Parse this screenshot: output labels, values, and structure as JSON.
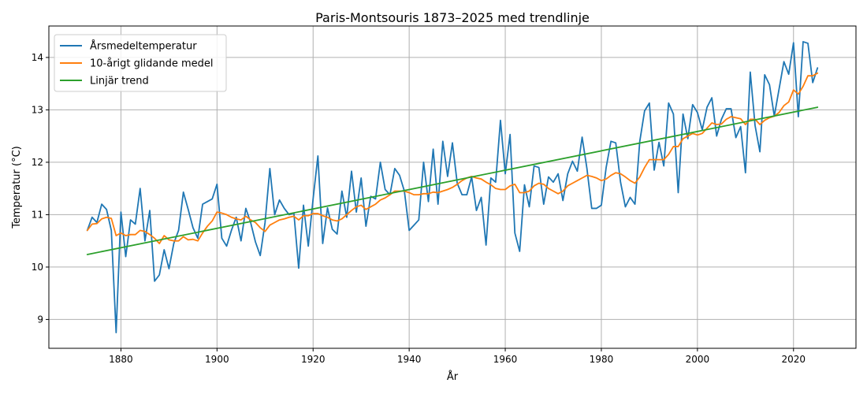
{
  "chart_data": {
    "type": "line",
    "title": "Paris-Montsouris 1873–2025 med trendlinje",
    "xlabel": "År",
    "ylabel": "Temperatur (°C)",
    "xlim": [
      1865,
      2033
    ],
    "ylim": [
      8.45,
      14.6
    ],
    "x_ticks": [
      1880,
      1900,
      1920,
      1940,
      1960,
      1980,
      2000,
      2020
    ],
    "y_ticks": [
      9,
      10,
      11,
      12,
      13,
      14
    ],
    "grid": true,
    "legend_position": "top-left",
    "series": [
      {
        "name": "Årsmedeltemperatur",
        "color": "#1f77b4",
        "points": [
          [
            1873,
            10.7
          ],
          [
            1874,
            10.95
          ],
          [
            1875,
            10.85
          ],
          [
            1876,
            11.2
          ],
          [
            1877,
            11.1
          ],
          [
            1878,
            10.7
          ],
          [
            1879,
            8.75
          ],
          [
            1880,
            11.05
          ],
          [
            1881,
            10.2
          ],
          [
            1882,
            10.9
          ],
          [
            1883,
            10.82
          ],
          [
            1884,
            11.5
          ],
          [
            1885,
            10.5
          ],
          [
            1886,
            11.08
          ],
          [
            1887,
            9.73
          ],
          [
            1888,
            9.85
          ],
          [
            1889,
            10.33
          ],
          [
            1890,
            9.97
          ],
          [
            1891,
            10.45
          ],
          [
            1892,
            10.7
          ],
          [
            1893,
            11.43
          ],
          [
            1894,
            11.1
          ],
          [
            1895,
            10.75
          ],
          [
            1896,
            10.55
          ],
          [
            1897,
            11.2
          ],
          [
            1898,
            11.25
          ],
          [
            1899,
            11.3
          ],
          [
            1900,
            11.58
          ],
          [
            1901,
            10.55
          ],
          [
            1902,
            10.4
          ],
          [
            1903,
            10.7
          ],
          [
            1904,
            10.95
          ],
          [
            1905,
            10.5
          ],
          [
            1906,
            11.12
          ],
          [
            1907,
            10.85
          ],
          [
            1908,
            10.48
          ],
          [
            1909,
            10.22
          ],
          [
            1910,
            10.85
          ],
          [
            1911,
            11.88
          ],
          [
            1912,
            11.0
          ],
          [
            1913,
            11.28
          ],
          [
            1914,
            11.12
          ],
          [
            1915,
            11.0
          ],
          [
            1916,
            11.03
          ],
          [
            1917,
            9.98
          ],
          [
            1918,
            11.18
          ],
          [
            1919,
            10.4
          ],
          [
            1920,
            11.3
          ],
          [
            1921,
            12.12
          ],
          [
            1922,
            10.45
          ],
          [
            1923,
            11.13
          ],
          [
            1924,
            10.72
          ],
          [
            1925,
            10.63
          ],
          [
            1926,
            11.45
          ],
          [
            1927,
            10.95
          ],
          [
            1928,
            11.83
          ],
          [
            1929,
            11.05
          ],
          [
            1930,
            11.7
          ],
          [
            1931,
            10.78
          ],
          [
            1932,
            11.35
          ],
          [
            1933,
            11.3
          ],
          [
            1934,
            12.0
          ],
          [
            1935,
            11.48
          ],
          [
            1936,
            11.38
          ],
          [
            1937,
            11.88
          ],
          [
            1938,
            11.75
          ],
          [
            1939,
            11.45
          ],
          [
            1940,
            10.7
          ],
          [
            1941,
            10.8
          ],
          [
            1942,
            10.9
          ],
          [
            1943,
            12.0
          ],
          [
            1944,
            11.25
          ],
          [
            1945,
            12.25
          ],
          [
            1946,
            11.2
          ],
          [
            1947,
            12.4
          ],
          [
            1948,
            11.73
          ],
          [
            1949,
            12.37
          ],
          [
            1950,
            11.6
          ],
          [
            1951,
            11.38
          ],
          [
            1952,
            11.38
          ],
          [
            1953,
            11.72
          ],
          [
            1954,
            11.08
          ],
          [
            1955,
            11.33
          ],
          [
            1956,
            10.42
          ],
          [
            1957,
            11.7
          ],
          [
            1958,
            11.62
          ],
          [
            1959,
            12.8
          ],
          [
            1960,
            11.78
          ],
          [
            1961,
            12.53
          ],
          [
            1962,
            10.65
          ],
          [
            1963,
            10.3
          ],
          [
            1964,
            11.57
          ],
          [
            1965,
            11.15
          ],
          [
            1966,
            11.93
          ],
          [
            1967,
            11.9
          ],
          [
            1968,
            11.2
          ],
          [
            1969,
            11.72
          ],
          [
            1970,
            11.62
          ],
          [
            1971,
            11.78
          ],
          [
            1972,
            11.27
          ],
          [
            1973,
            11.78
          ],
          [
            1974,
            12.02
          ],
          [
            1975,
            11.83
          ],
          [
            1976,
            12.48
          ],
          [
            1977,
            11.88
          ],
          [
            1978,
            11.12
          ],
          [
            1979,
            11.12
          ],
          [
            1980,
            11.18
          ],
          [
            1981,
            11.9
          ],
          [
            1982,
            12.4
          ],
          [
            1983,
            12.37
          ],
          [
            1984,
            11.62
          ],
          [
            1985,
            11.15
          ],
          [
            1986,
            11.33
          ],
          [
            1987,
            11.2
          ],
          [
            1988,
            12.4
          ],
          [
            1989,
            12.98
          ],
          [
            1990,
            13.13
          ],
          [
            1991,
            11.85
          ],
          [
            1992,
            12.38
          ],
          [
            1993,
            11.93
          ],
          [
            1994,
            13.13
          ],
          [
            1995,
            12.92
          ],
          [
            1996,
            11.42
          ],
          [
            1997,
            12.92
          ],
          [
            1998,
            12.45
          ],
          [
            1999,
            13.1
          ],
          [
            2000,
            12.95
          ],
          [
            2001,
            12.62
          ],
          [
            2002,
            13.05
          ],
          [
            2003,
            13.23
          ],
          [
            2004,
            12.5
          ],
          [
            2005,
            12.82
          ],
          [
            2006,
            13.02
          ],
          [
            2007,
            13.02
          ],
          [
            2008,
            12.47
          ],
          [
            2009,
            12.68
          ],
          [
            2010,
            11.8
          ],
          [
            2011,
            13.72
          ],
          [
            2012,
            12.7
          ],
          [
            2013,
            12.2
          ],
          [
            2014,
            13.67
          ],
          [
            2015,
            13.48
          ],
          [
            2016,
            12.88
          ],
          [
            2017,
            13.4
          ],
          [
            2018,
            13.92
          ],
          [
            2019,
            13.68
          ],
          [
            2020,
            14.28
          ],
          [
            2021,
            12.87
          ],
          [
            2022,
            14.3
          ],
          [
            2023,
            14.27
          ],
          [
            2024,
            13.52
          ],
          [
            2025,
            13.8
          ]
        ]
      },
      {
        "name": "10-årigt glidande medel",
        "color": "#ff7f0e",
        "points": [
          [
            1873,
            10.7
          ],
          [
            1874,
            10.82
          ],
          [
            1875,
            10.83
          ],
          [
            1876,
            10.92
          ],
          [
            1877,
            10.95
          ],
          [
            1878,
            10.93
          ],
          [
            1879,
            10.6
          ],
          [
            1880,
            10.65
          ],
          [
            1881,
            10.6
          ],
          [
            1882,
            10.62
          ],
          [
            1883,
            10.62
          ],
          [
            1884,
            10.7
          ],
          [
            1885,
            10.68
          ],
          [
            1886,
            10.62
          ],
          [
            1887,
            10.55
          ],
          [
            1888,
            10.45
          ],
          [
            1889,
            10.6
          ],
          [
            1890,
            10.52
          ],
          [
            1891,
            10.5
          ],
          [
            1892,
            10.5
          ],
          [
            1893,
            10.58
          ],
          [
            1894,
            10.52
          ],
          [
            1895,
            10.53
          ],
          [
            1896,
            10.5
          ],
          [
            1897,
            10.65
          ],
          [
            1898,
            10.78
          ],
          [
            1899,
            10.88
          ],
          [
            1900,
            11.05
          ],
          [
            1901,
            11.03
          ],
          [
            1902,
            11.0
          ],
          [
            1903,
            10.95
          ],
          [
            1904,
            10.92
          ],
          [
            1905,
            10.9
          ],
          [
            1906,
            10.97
          ],
          [
            1907,
            10.9
          ],
          [
            1908,
            10.85
          ],
          [
            1909,
            10.75
          ],
          [
            1910,
            10.68
          ],
          [
            1911,
            10.8
          ],
          [
            1912,
            10.85
          ],
          [
            1913,
            10.9
          ],
          [
            1914,
            10.92
          ],
          [
            1915,
            10.95
          ],
          [
            1916,
            10.97
          ],
          [
            1917,
            10.9
          ],
          [
            1918,
            10.98
          ],
          [
            1919,
            10.98
          ],
          [
            1920,
            11.02
          ],
          [
            1921,
            11.02
          ],
          [
            1922,
            10.98
          ],
          [
            1923,
            10.95
          ],
          [
            1924,
            10.9
          ],
          [
            1925,
            10.88
          ],
          [
            1926,
            10.92
          ],
          [
            1927,
            11.0
          ],
          [
            1928,
            11.08
          ],
          [
            1929,
            11.15
          ],
          [
            1930,
            11.18
          ],
          [
            1931,
            11.1
          ],
          [
            1932,
            11.15
          ],
          [
            1933,
            11.2
          ],
          [
            1934,
            11.28
          ],
          [
            1935,
            11.32
          ],
          [
            1936,
            11.38
          ],
          [
            1937,
            11.45
          ],
          [
            1938,
            11.45
          ],
          [
            1939,
            11.45
          ],
          [
            1940,
            11.42
          ],
          [
            1941,
            11.38
          ],
          [
            1942,
            11.38
          ],
          [
            1943,
            11.4
          ],
          [
            1944,
            11.4
          ],
          [
            1945,
            11.43
          ],
          [
            1946,
            11.42
          ],
          [
            1947,
            11.45
          ],
          [
            1948,
            11.48
          ],
          [
            1949,
            11.52
          ],
          [
            1950,
            11.58
          ],
          [
            1951,
            11.65
          ],
          [
            1952,
            11.7
          ],
          [
            1953,
            11.73
          ],
          [
            1954,
            11.7
          ],
          [
            1955,
            11.68
          ],
          [
            1956,
            11.62
          ],
          [
            1957,
            11.57
          ],
          [
            1958,
            11.5
          ],
          [
            1959,
            11.48
          ],
          [
            1960,
            11.48
          ],
          [
            1961,
            11.55
          ],
          [
            1962,
            11.58
          ],
          [
            1963,
            11.42
          ],
          [
            1964,
            11.42
          ],
          [
            1965,
            11.45
          ],
          [
            1966,
            11.55
          ],
          [
            1967,
            11.6
          ],
          [
            1968,
            11.58
          ],
          [
            1969,
            11.5
          ],
          [
            1970,
            11.45
          ],
          [
            1971,
            11.4
          ],
          [
            1972,
            11.45
          ],
          [
            1973,
            11.55
          ],
          [
            1974,
            11.6
          ],
          [
            1975,
            11.65
          ],
          [
            1976,
            11.7
          ],
          [
            1977,
            11.75
          ],
          [
            1978,
            11.73
          ],
          [
            1979,
            11.7
          ],
          [
            1980,
            11.65
          ],
          [
            1981,
            11.68
          ],
          [
            1982,
            11.75
          ],
          [
            1983,
            11.8
          ],
          [
            1984,
            11.78
          ],
          [
            1985,
            11.72
          ],
          [
            1986,
            11.65
          ],
          [
            1987,
            11.6
          ],
          [
            1988,
            11.72
          ],
          [
            1989,
            11.9
          ],
          [
            1990,
            12.05
          ],
          [
            1991,
            12.05
          ],
          [
            1992,
            12.05
          ],
          [
            1993,
            12.05
          ],
          [
            1994,
            12.15
          ],
          [
            1995,
            12.3
          ],
          [
            1996,
            12.3
          ],
          [
            1997,
            12.45
          ],
          [
            1998,
            12.5
          ],
          [
            1999,
            12.55
          ],
          [
            2000,
            12.52
          ],
          [
            2001,
            12.55
          ],
          [
            2002,
            12.65
          ],
          [
            2003,
            12.75
          ],
          [
            2004,
            12.72
          ],
          [
            2005,
            12.73
          ],
          [
            2006,
            12.82
          ],
          [
            2007,
            12.87
          ],
          [
            2008,
            12.85
          ],
          [
            2009,
            12.83
          ],
          [
            2010,
            12.72
          ],
          [
            2011,
            12.82
          ],
          [
            2012,
            12.82
          ],
          [
            2013,
            12.72
          ],
          [
            2014,
            12.8
          ],
          [
            2015,
            12.85
          ],
          [
            2016,
            12.88
          ],
          [
            2017,
            12.95
          ],
          [
            2018,
            13.08
          ],
          [
            2019,
            13.15
          ],
          [
            2020,
            13.38
          ],
          [
            2021,
            13.3
          ],
          [
            2022,
            13.45
          ],
          [
            2023,
            13.65
          ],
          [
            2024,
            13.65
          ],
          [
            2025,
            13.7
          ]
        ]
      },
      {
        "name": "Linjär trend",
        "color": "#2ca02c",
        "points": [
          [
            1873,
            10.24
          ],
          [
            2025,
            13.05
          ]
        ]
      }
    ]
  }
}
